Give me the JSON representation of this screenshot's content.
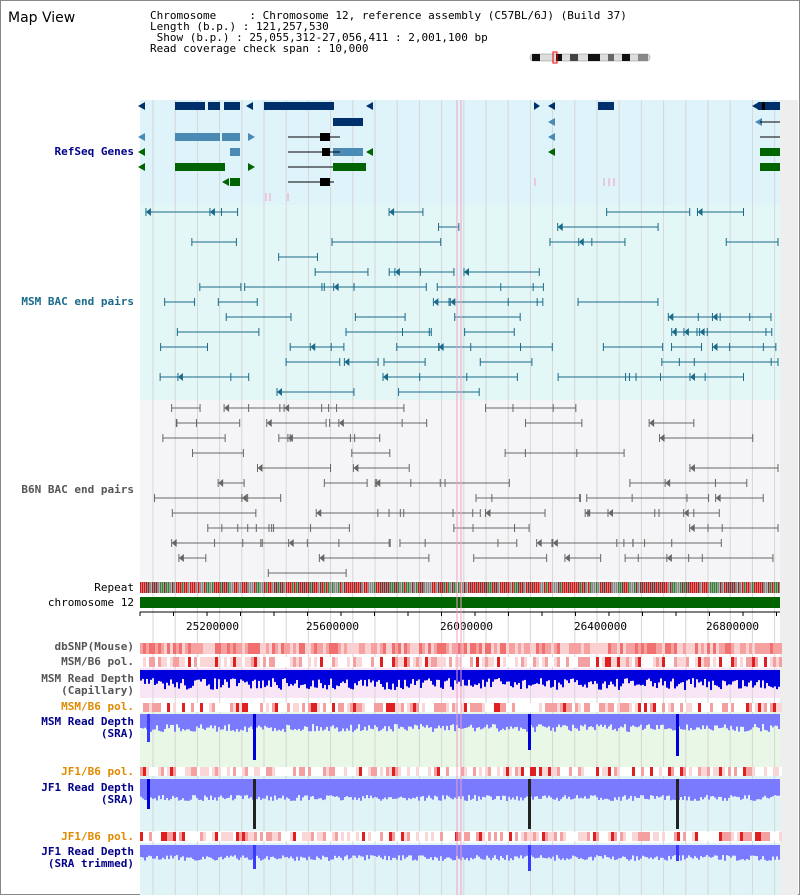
{
  "title": "Map View",
  "info": {
    "chromosome_line": "Chromosome     : Chromosome 12, reference assembly (C57BL/6J) (Build 37)",
    "length_line": "Length (b.p.) : 121,257,530",
    "show_line": " Show (b.p.) : 25,055,312-27,056,411 : 2,001,100 bp",
    "coverage_line": "Read coverage check span : 10,000"
  },
  "tracks": {
    "refseq": "RefSeq Genes",
    "msm_bac": "MSM BAC end pairs",
    "b6n_bac": "B6N BAC end pairs",
    "repeat": "Repeat",
    "chromosome": "chromosome 12",
    "dbsnp": "dbSNP(Mouse)",
    "msm_b6_pol_1": "MSM/B6 pol.",
    "msm_depth_cap_1": "MSM Read Depth",
    "msm_depth_cap_2": "(Capillary)",
    "msm_b6_pol_2": "MSM/B6 pol.",
    "msm_depth_sra_1": "MSM Read Depth",
    "msm_depth_sra_2": "(SRA)",
    "jf1_b6_pol_1": "JF1/B6 pol.",
    "jf1_depth_sra_1": "JF1 Read Depth",
    "jf1_depth_sra_2": "(SRA)",
    "jf1_b6_pol_2": "JF1/B6 pol.",
    "jf1_depth_trim_1": "JF1 Read Depth",
    "jf1_depth_trim_2": "(SRA trimmed)"
  },
  "axis_ticks": [
    "25200000",
    "25600000",
    "26000000",
    "26400000",
    "26800000"
  ],
  "colors": {
    "gene_dark": "#00306b",
    "gene_mid": "#4a8ab5",
    "gene_green": "#006400",
    "msm_pair": "#1a6a8a",
    "b6n_pair": "#666666",
    "chrom_bar": "#006400",
    "read_depth_blue": "#0000dd",
    "read_depth_violet": "#7a7aff",
    "pol_red": "#e02020"
  }
}
